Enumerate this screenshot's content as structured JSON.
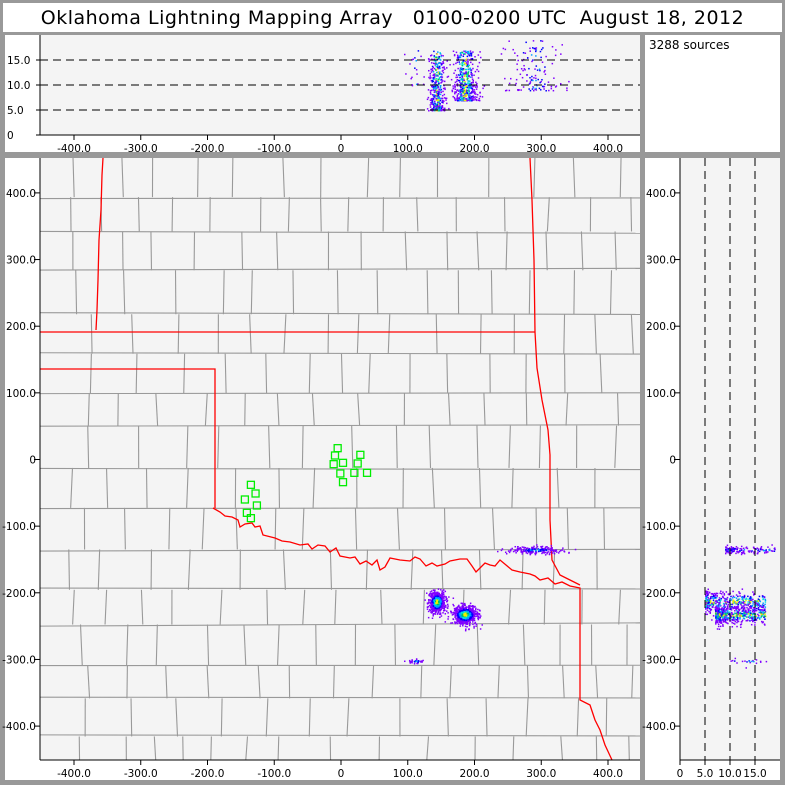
{
  "title": "Oklahoma Lightning Mapping Array   0100-0200 UTC  August 18, 2012",
  "source_count": "3288 sources",
  "colors": {
    "state_border": "#ff0000",
    "county_border": "#999999",
    "station": "#00ee00",
    "plot_bg": "#f4f4f4",
    "density": [
      "#8000ff",
      "#0000ff",
      "#00a0ff",
      "#00e0e0",
      "#00c060",
      "#f0f000"
    ]
  },
  "chart_data": [
    {
      "type": "scatter",
      "panel": "altitude-vs-east-west",
      "x_ticks": [
        "-400.0",
        "-300.0",
        "-200.0",
        "-100.0",
        "0",
        "100.0",
        "200.0",
        "300.0",
        "400.0"
      ],
      "y_ticks": [
        "0",
        "5.0",
        "10.0",
        "15.0"
      ],
      "xlim": [
        -450,
        450
      ],
      "ylim": [
        0,
        20
      ],
      "reference_lines": [
        5,
        10,
        15
      ]
    },
    {
      "type": "scatter",
      "panel": "plan-view-map",
      "x_ticks": [
        "-400.0",
        "-300.0",
        "-200.0",
        "-100.0",
        "0",
        "100.0",
        "200.0",
        "300.0",
        "400.0"
      ],
      "y_ticks": [
        "400.0",
        "300.0",
        "200.0",
        "100.0",
        "0",
        "-100.0",
        "-200.0",
        "-300.0",
        "-400.0"
      ],
      "xlim": [
        -450,
        450
      ],
      "ylim": [
        -450,
        455
      ],
      "stations": [
        [
          -5,
          17
        ],
        [
          -9,
          6
        ],
        [
          3,
          -5
        ],
        [
          -11,
          -7
        ],
        [
          29,
          7
        ],
        [
          25,
          -6
        ],
        [
          -1,
          -21
        ],
        [
          20,
          -20
        ],
        [
          39,
          -20
        ],
        [
          3,
          -34
        ],
        [
          -135,
          -38
        ],
        [
          -128,
          -51
        ],
        [
          -144,
          -60
        ],
        [
          -126,
          -69
        ],
        [
          -141,
          -80
        ],
        [
          -135,
          -88
        ]
      ],
      "source_clusters": [
        {
          "x": 143,
          "y": -213,
          "sx": 6,
          "sy": 8,
          "alt": [
            5,
            17
          ],
          "n": 1200
        },
        {
          "x": 185,
          "y": -232,
          "sx": 9,
          "sy": 7,
          "alt": [
            7,
            17
          ],
          "n": 1400
        },
        {
          "x": 290,
          "y": -135,
          "sx": 22,
          "sy": 3,
          "alt": [
            9,
            19
          ],
          "n": 380
        },
        {
          "x": 112,
          "y": -302,
          "sx": 6,
          "sy": 2,
          "alt": [
            10,
            18
          ],
          "n": 60
        }
      ]
    },
    {
      "type": "scatter",
      "panel": "north-south-vs-altitude",
      "x_ticks": [
        "0",
        "5.0",
        "10.0",
        "15.0"
      ],
      "y_ticks": [
        "400.0",
        "300.0",
        "200.0",
        "100.0",
        "0",
        "-100.0",
        "-200.0",
        "-300.0",
        "-400.0"
      ],
      "xlim": [
        0,
        20
      ],
      "ylim": [
        -450,
        455
      ],
      "reference_lines": [
        5,
        10,
        15
      ]
    }
  ]
}
